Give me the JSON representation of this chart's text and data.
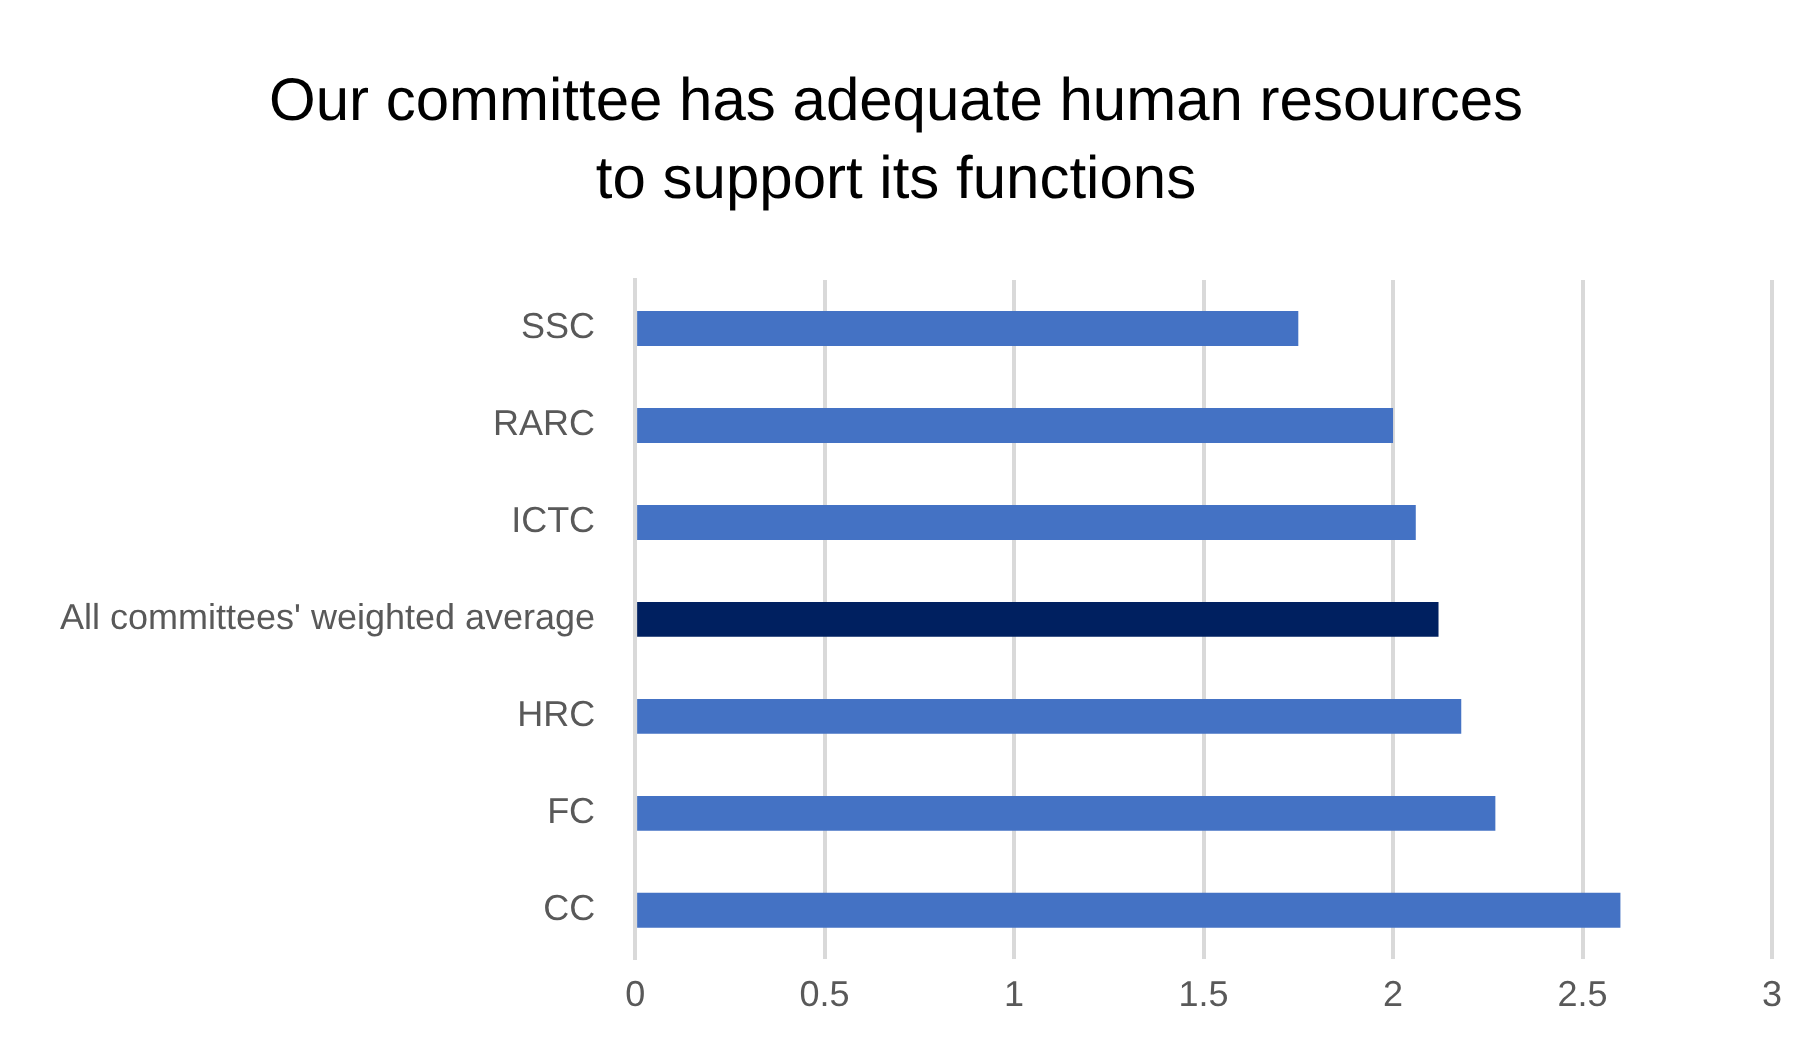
{
  "chart_data": {
    "type": "bar",
    "orientation": "horizontal",
    "title": "Our committee has adequate human resources\nto support its functions",
    "categories": [
      "SSC",
      "RARC",
      "ICTC",
      "All committees' weighted average",
      "HRC",
      "FC",
      "CC"
    ],
    "values": [
      1.75,
      2.0,
      2.06,
      2.12,
      2.18,
      2.27,
      2.6
    ],
    "colors": [
      "#4472c4",
      "#4472c4",
      "#4472c4",
      "#002060",
      "#4472c4",
      "#4472c4",
      "#4472c4"
    ],
    "xlim": [
      0,
      3
    ],
    "xticks": [
      0,
      0.5,
      1,
      1.5,
      2,
      2.5,
      3
    ],
    "grid": "x",
    "legend": false
  }
}
